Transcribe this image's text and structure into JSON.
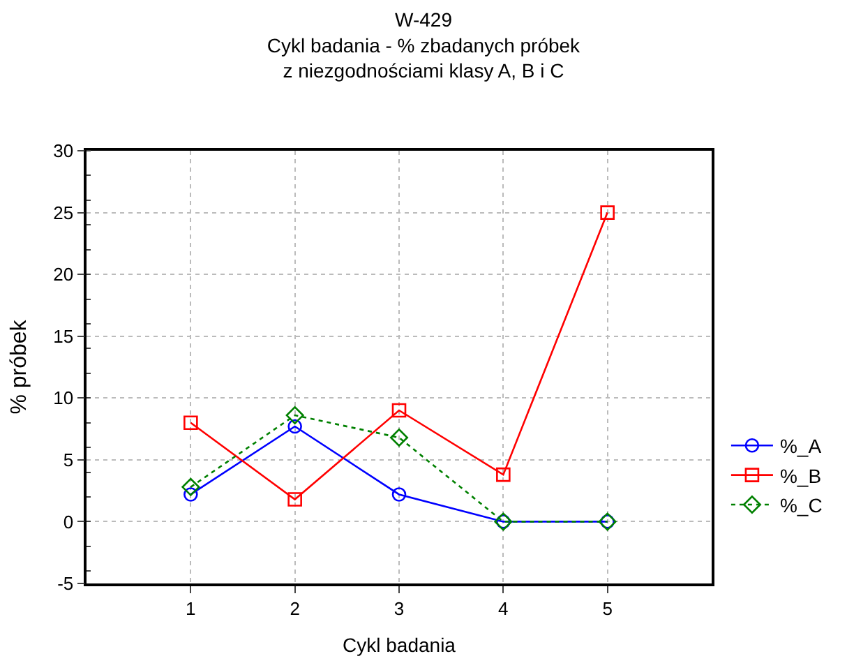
{
  "chart_data": {
    "type": "line",
    "title": "W-429",
    "subtitle": "Cykl badania - % zbadanych próbek\nz niezgodnościami klasy A, B i C",
    "xlabel": "Cykl badania",
    "ylabel": "% próbek",
    "x": [
      1,
      2,
      3,
      4,
      5
    ],
    "series": [
      {
        "name": "%_A",
        "color": "#0000ff",
        "marker": "circle",
        "line_style": "solid",
        "values": [
          2.2,
          7.7,
          2.2,
          0,
          0
        ]
      },
      {
        "name": "%_B",
        "color": "#ff0000",
        "marker": "square",
        "line_style": "solid",
        "values": [
          8.0,
          1.8,
          9.0,
          3.8,
          25
        ]
      },
      {
        "name": "%_C",
        "color": "#008000",
        "marker": "diamond",
        "line_style": "dotted",
        "values": [
          2.8,
          8.6,
          6.8,
          0,
          0
        ]
      }
    ],
    "xlim": [
      0,
      6
    ],
    "xticks": [
      1,
      2,
      3,
      4,
      5
    ],
    "ylim": [
      -5,
      30
    ],
    "yticks": [
      -5,
      0,
      5,
      10,
      15,
      20,
      25,
      30
    ],
    "grid": true,
    "legend": "right"
  }
}
